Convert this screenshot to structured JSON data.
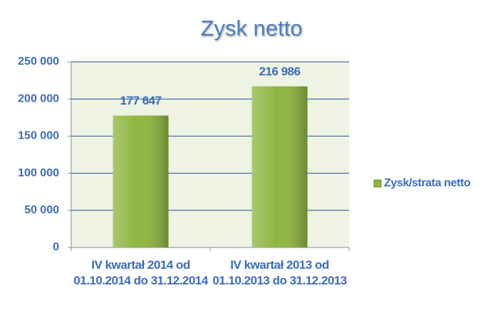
{
  "chart_data": {
    "type": "bar",
    "title": "Zysk netto",
    "categories": [
      "IV kwartał 2014 od 01.10.2014 do 31.12.2014",
      "IV kwartał 2013 od 01.10.2013 do 31.12.2013"
    ],
    "series": [
      {
        "name": "Zysk/strata netto",
        "color": "#8db63e",
        "values": [
          177647,
          216986
        ],
        "value_labels": [
          "177 647",
          "216 986"
        ]
      }
    ],
    "ylim": [
      0,
      250000
    ],
    "yticks": [
      0,
      {
        "value": 50000,
        "label": "50 000"
      },
      {
        "value": 100000,
        "label": "100 000"
      },
      {
        "value": 150000,
        "label": "150 000"
      },
      {
        "value": 200000,
        "label": "200 000"
      },
      {
        "value": 250000,
        "label": "250 000"
      }
    ],
    "grid": true,
    "legend": "right"
  }
}
